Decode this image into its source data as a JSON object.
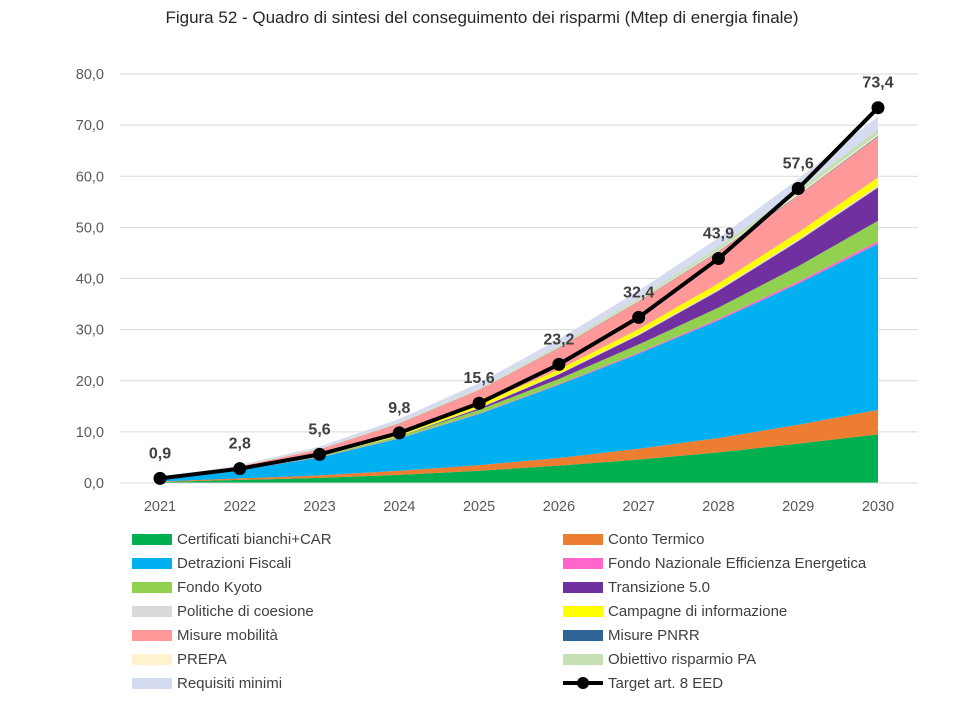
{
  "chart_data": {
    "type": "area",
    "title": "Figura 52 - Quadro di sintesi del conseguimento dei risparmi (Mtep di energia finale)",
    "xlabel": "",
    "ylabel": "",
    "ylim": [
      0,
      80
    ],
    "y_ticks": [
      "0,0",
      "10,0",
      "20,0",
      "30,0",
      "40,0",
      "50,0",
      "60,0",
      "70,0",
      "80,0"
    ],
    "grid": true,
    "legend_position": "bottom",
    "stacked": true,
    "x": [
      "2021",
      "2022",
      "2023",
      "2024",
      "2025",
      "2026",
      "2027",
      "2028",
      "2029",
      "2030"
    ],
    "series": [
      {
        "name": "Certificati bianchi+CAR",
        "color": "#00B050",
        "values": [
          0.2,
          0.6,
          1.0,
          1.6,
          2.4,
          3.4,
          4.6,
          6.0,
          7.7,
          9.5
        ]
      },
      {
        "name": "Conto Termico",
        "color": "#ED7D31",
        "values": [
          0.1,
          0.3,
          0.5,
          0.8,
          1.1,
          1.5,
          2.1,
          2.8,
          3.7,
          4.8
        ]
      },
      {
        "name": "Detrazioni Fiscali",
        "color": "#00B0F0",
        "values": [
          0.4,
          1.6,
          3.5,
          6.3,
          10.0,
          14.3,
          18.6,
          23.0,
          27.6,
          32.5
        ]
      },
      {
        "name": "Fondo Nazionale Efficienza Energetica",
        "color": "#FF66CC",
        "values": [
          0.02,
          0.04,
          0.06,
          0.08,
          0.1,
          0.15,
          0.2,
          0.3,
          0.4,
          0.5
        ]
      },
      {
        "name": "Fondo Kyoto",
        "color": "#92D050",
        "values": [
          0.05,
          0.1,
          0.2,
          0.4,
          0.7,
          1.0,
          1.6,
          2.2,
          3.0,
          4.0
        ]
      },
      {
        "name": "Transizione 5.0",
        "color": "#7030A0",
        "values": [
          0.0,
          0.0,
          0.0,
          0.0,
          0.3,
          0.9,
          1.8,
          3.3,
          4.9,
          6.5
        ]
      },
      {
        "name": "Politiche di coesione",
        "color": "#D9D9D9",
        "values": [
          0.02,
          0.03,
          0.05,
          0.07,
          0.1,
          0.15,
          0.2,
          0.25,
          0.3,
          0.35
        ]
      },
      {
        "name": "Campagne di informazione",
        "color": "#FFFF00",
        "values": [
          0.05,
          0.15,
          0.3,
          0.5,
          0.6,
          0.8,
          1.0,
          1.2,
          1.4,
          1.6
        ]
      },
      {
        "name": "Misure mobilità",
        "color": "#FF9999",
        "values": [
          0.15,
          0.45,
          1.0,
          1.9,
          2.9,
          4.2,
          5.4,
          6.2,
          7.2,
          8.0
        ]
      },
      {
        "name": "Misure PNRR",
        "color": "#2F6496",
        "values": [
          0.0,
          0.0,
          0.02,
          0.04,
          0.05,
          0.07,
          0.08,
          0.1,
          0.12,
          0.15
        ]
      },
      {
        "name": "PREPA",
        "color": "#FFF2CC",
        "values": [
          0.01,
          0.02,
          0.04,
          0.06,
          0.08,
          0.1,
          0.15,
          0.2,
          0.25,
          0.3
        ]
      },
      {
        "name": "Obiettivo risparmio PA",
        "color": "#C5E0B4",
        "values": [
          0.01,
          0.02,
          0.05,
          0.1,
          0.2,
          0.3,
          0.4,
          0.6,
          0.8,
          1.0
        ]
      },
      {
        "name": "Requisiti minimi",
        "color": "#D6DCF0",
        "values": [
          0.05,
          0.2,
          0.4,
          0.7,
          1.0,
          1.3,
          1.5,
          1.8,
          2.1,
          2.5
        ]
      }
    ],
    "line_series": {
      "name": "Target art. 8 EED",
      "color": "#000000",
      "values": [
        0.9,
        2.8,
        5.6,
        9.8,
        15.6,
        23.2,
        32.4,
        43.9,
        57.6,
        73.4
      ],
      "labels": [
        "0,9",
        "2,8",
        "5,6",
        "9,8",
        "15,6",
        "23,2",
        "32,4",
        "43,9",
        "57,6",
        "73,4"
      ]
    }
  }
}
